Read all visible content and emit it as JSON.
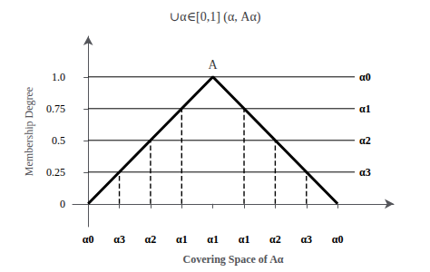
{
  "chart_data": {
    "type": "line",
    "title": "∪α∈[0,1] (α, Aα)",
    "xlabel": "Covering Space of Aα",
    "ylabel": "Membership Degree",
    "x": [
      0,
      4,
      8
    ],
    "values": [
      0,
      1,
      0
    ],
    "color": "#000000",
    "hlines": [
      {
        "y": 1.0,
        "xmin": 0,
        "xmax": 8.55,
        "label": "α0"
      },
      {
        "y": 0.75,
        "xmin": 0,
        "xmax": 8.55,
        "label": "α1"
      },
      {
        "y": 0.5,
        "xmin": 0,
        "xmax": 8.55,
        "label": "α2"
      },
      {
        "y": 0.25,
        "xmin": 0,
        "xmax": 8.55,
        "label": "α3"
      }
    ],
    "vlines": [
      {
        "x": 1.0,
        "ymin": 0,
        "ymax": 0.25,
        "line_style": "dashed"
      },
      {
        "x": 2.0,
        "ymin": 0,
        "ymax": 0.5,
        "line_style": "dashed"
      },
      {
        "x": 3.0,
        "ymin": 0,
        "ymax": 0.75,
        "line_style": "dashed"
      },
      {
        "x": 5.0,
        "ymin": 0,
        "ymax": 0.75,
        "line_style": "dashed"
      },
      {
        "x": 6.0,
        "ymin": 0,
        "ymax": 0.5,
        "line_style": "dashed"
      },
      {
        "x": 7.0,
        "ymin": 0,
        "ymax": 0.25,
        "line_style": "dashed"
      }
    ],
    "annotations": [
      {
        "text": "A",
        "x": 4,
        "y": 1.0
      }
    ],
    "xlim": [
      -0.5,
      9.8
    ],
    "xticks": [
      {
        "value": 0,
        "label": "α0"
      },
      {
        "value": 1,
        "label": "α3"
      },
      {
        "value": 2,
        "label": "α2"
      },
      {
        "value": 3,
        "label": "α1"
      },
      {
        "value": 4,
        "label": "α1"
      },
      {
        "value": 5,
        "label": "α1"
      },
      {
        "value": 6,
        "label": "α2"
      },
      {
        "value": 7,
        "label": "α3"
      },
      {
        "value": 8,
        "label": "α0"
      }
    ],
    "ylim": [
      -0.18,
      1.32
    ],
    "yticks": [
      0,
      0.25,
      0.5,
      0.75,
      {
        "value": 1.0,
        "label": "1.0"
      }
    ],
    "grid": false
  }
}
